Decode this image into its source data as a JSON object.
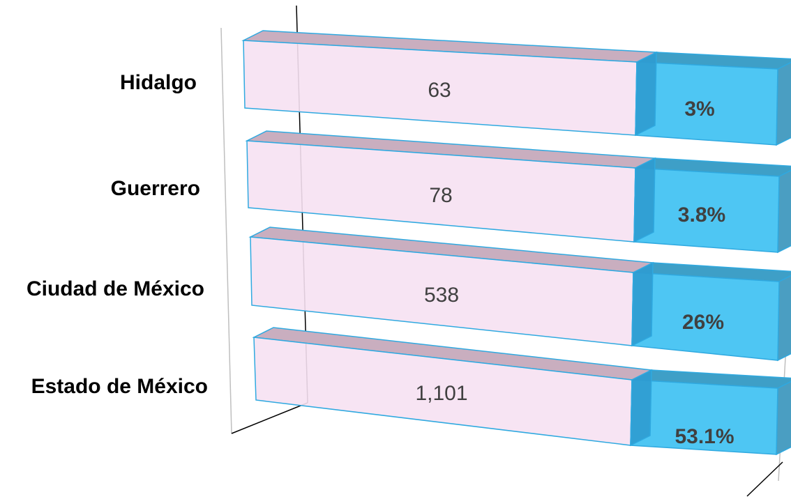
{
  "chart_data": {
    "type": "bar",
    "orientation": "horizontal",
    "stacked": true,
    "style": "3d",
    "categories": [
      "Hidalgo",
      "Guerrero",
      "Ciudad de México",
      "Estado de México"
    ],
    "series": [
      {
        "values": [
          63,
          78,
          538,
          1101
        ],
        "value_labels": [
          "63",
          "78",
          "538",
          "1,101"
        ],
        "color": "#F6E1F2"
      },
      {
        "values": [
          3,
          3.8,
          26,
          53.1
        ],
        "value_labels": [
          "3%",
          "3.8%",
          "26%",
          "53.1%"
        ],
        "color": "#4EC6F3"
      }
    ],
    "title": "",
    "xlabel": "",
    "ylabel": "",
    "grid": false,
    "legend": "none"
  }
}
